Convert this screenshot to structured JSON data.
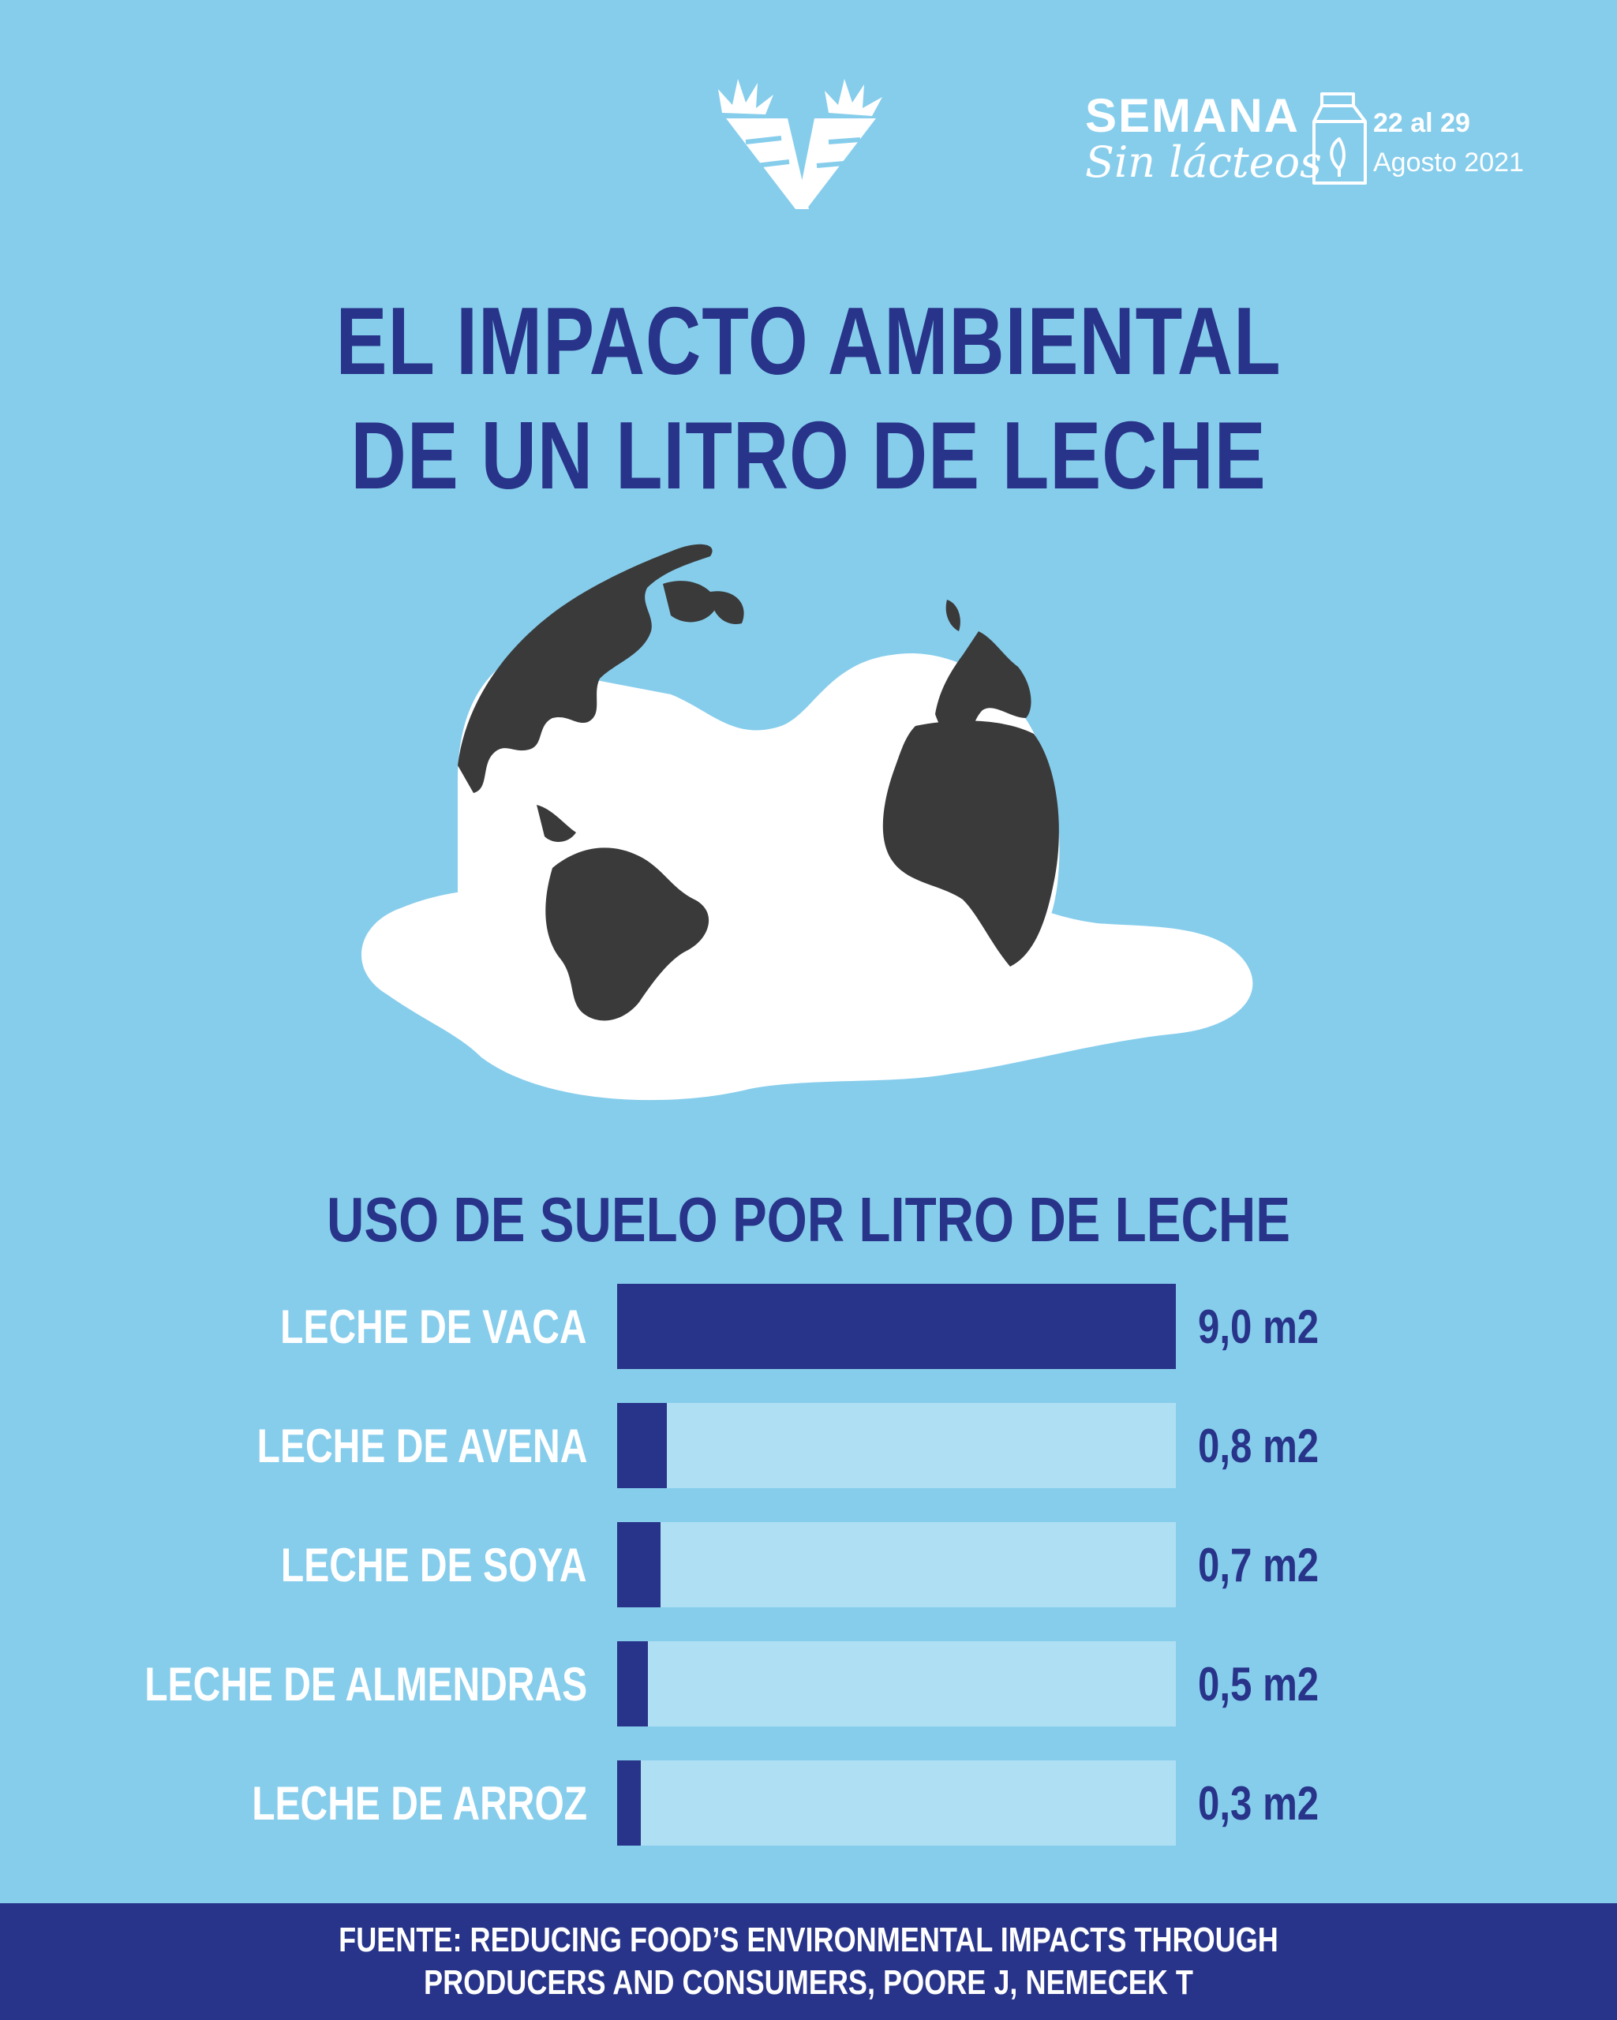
{
  "header": {
    "event_name": "SEMANA",
    "event_subtitle": "Sin lácteos",
    "event_dates": "22 al 29",
    "event_month": "Agosto 2021"
  },
  "title": {
    "line1": "EL IMPACTO AMBIENTAL",
    "line2": "DE UN LITRO DE LECHE"
  },
  "chart_data": {
    "type": "bar",
    "title": "USO DE SUELO POR LITRO DE LECHE",
    "orientation": "horizontal",
    "unit": "m2",
    "categories": [
      "LECHE DE VACA",
      "LECHE DE AVENA",
      "LECHE DE SOYA",
      "LECHE DE ALMENDRAS",
      "LECHE DE ARROZ"
    ],
    "values": [
      9.0,
      0.8,
      0.7,
      0.5,
      0.3
    ],
    "value_labels": [
      "9,0",
      "0,8",
      "0,7",
      "0,5",
      "0,3"
    ],
    "xlim": [
      0,
      9.0
    ],
    "colors": {
      "bar": "#283489",
      "track": "#afdff2"
    }
  },
  "footer": {
    "source": "FUENTE: REDUCING FOOD’S ENVIRONMENTAL IMPACTS THROUGH\nPRODUCERS AND CONSUMERS, POORE J, NEMECEK T"
  },
  "colors": {
    "background": "#86cdec",
    "primary": "#283489",
    "white": "#ffffff",
    "land": "#3a3a3a"
  },
  "icons": [
    "carrot-v-logo-icon",
    "milk-carton-icon",
    "melting-globe-icon"
  ]
}
